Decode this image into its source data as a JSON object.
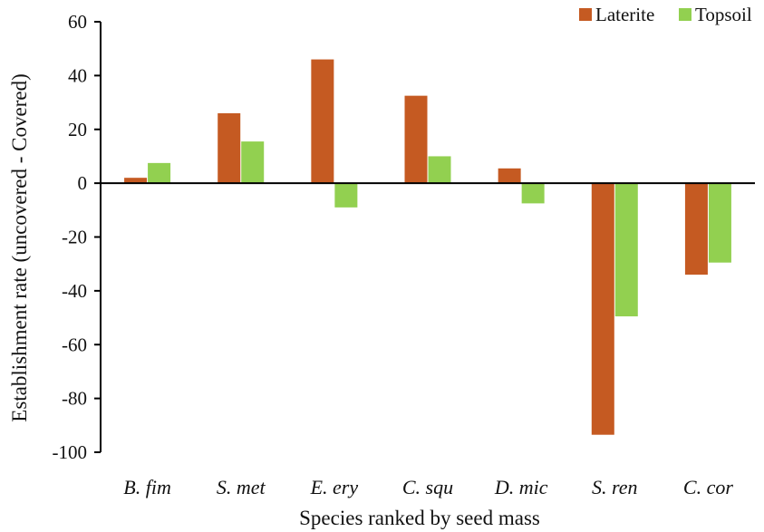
{
  "chart_data": {
    "type": "bar",
    "title": "",
    "xlabel": "Species ranked by seed mass",
    "ylabel": "Establishment rate (uncovered - Covered)",
    "categories": [
      "B. fim",
      "S. met",
      "E. ery",
      "C. squ",
      "D. mic",
      "S. ren",
      "C. cor"
    ],
    "series": [
      {
        "name": "Laterite",
        "color": "#c55a22",
        "values": [
          2,
          26,
          46,
          32.5,
          5.5,
          -93.5,
          -34
        ]
      },
      {
        "name": "Topsoil",
        "color": "#92d050",
        "values": [
          7.5,
          15.5,
          -9,
          10,
          -7.5,
          -49.5,
          -29.5
        ]
      }
    ],
    "ylim": [
      -100,
      60
    ],
    "yticks": [
      "60",
      "40",
      "20",
      "0",
      "-20",
      "-40",
      "-60",
      "-80",
      "-100"
    ],
    "ytick_values": [
      60,
      40,
      20,
      0,
      -20,
      -40,
      -60,
      -80,
      -100
    ],
    "grid": false,
    "legend_position": "top-right"
  }
}
